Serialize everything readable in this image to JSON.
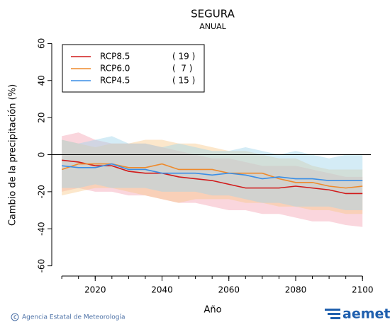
{
  "chart_data": {
    "type": "line",
    "title": "SEGURA",
    "subtitle": "ANUAL",
    "x_label": "Año",
    "y_label": "Cambio de la precipitación (%)",
    "x": [
      2010,
      2015,
      2020,
      2025,
      2030,
      2035,
      2040,
      2045,
      2050,
      2055,
      2060,
      2065,
      2070,
      2075,
      2080,
      2085,
      2090,
      2095,
      2100
    ],
    "xlim": [
      2007,
      2102.5
    ],
    "xticks": [
      2020,
      2040,
      2060,
      2080,
      2100
    ],
    "ylim": [
      -65.5,
      65.5
    ],
    "yticks": [
      -60,
      -40,
      -20,
      0,
      20,
      40,
      60
    ],
    "grid": false,
    "zero_line": true,
    "legend": "top-left",
    "series": [
      {
        "name": "RCP8.5",
        "count": "( 19 )",
        "color": "#d11a1a",
        "band_color": "#f4a3b4",
        "values": [
          -3,
          -4,
          -6,
          -6,
          -9,
          -10,
          -10,
          -12,
          -13,
          -14,
          -16,
          -18,
          -18,
          -18,
          -17,
          -18,
          -19,
          -21,
          -21
        ],
        "upper": [
          10,
          12,
          8,
          6,
          6,
          6,
          4,
          2,
          0,
          -2,
          -2,
          -4,
          -6,
          -6,
          -6,
          -8,
          -10,
          -12,
          -12
        ],
        "lower": [
          -20,
          -18,
          -20,
          -20,
          -22,
          -22,
          -24,
          -26,
          -26,
          -28,
          -30,
          -30,
          -32,
          -32,
          -34,
          -36,
          -36,
          -38,
          -39
        ]
      },
      {
        "name": "RCP6.0",
        "count": "(  7 )",
        "color": "#ee8a2c",
        "band_color": "#f8c98c",
        "values": [
          -8,
          -5,
          -5,
          -5,
          -7,
          -7,
          -5,
          -8,
          -8,
          -8,
          -10,
          -10,
          -10,
          -13,
          -15,
          -15,
          -17,
          -18,
          -17
        ],
        "upper": [
          8,
          6,
          4,
          6,
          6,
          8,
          8,
          6,
          6,
          4,
          2,
          2,
          0,
          -2,
          -2,
          -6,
          -8,
          -8,
          -8
        ],
        "lower": [
          -22,
          -20,
          -18,
          -18,
          -20,
          -22,
          -24,
          -26,
          -24,
          -24,
          -24,
          -26,
          -26,
          -28,
          -28,
          -30,
          -30,
          -32,
          -32
        ]
      },
      {
        "name": "RCP4.5",
        "count": "( 15 )",
        "color": "#3a8ee6",
        "band_color": "#9fd4ec",
        "values": [
          -6,
          -7,
          -7,
          -5,
          -8,
          -8,
          -10,
          -10,
          -10,
          -11,
          -10,
          -11,
          -13,
          -12,
          -13,
          -13,
          -14,
          -14,
          -14
        ],
        "upper": [
          8,
          6,
          8,
          10,
          6,
          6,
          4,
          6,
          4,
          2,
          2,
          4,
          2,
          0,
          2,
          0,
          -2,
          0,
          0
        ],
        "lower": [
          -18,
          -18,
          -16,
          -18,
          -18,
          -18,
          -20,
          -20,
          -20,
          -22,
          -22,
          -24,
          -26,
          -26,
          -28,
          -28,
          -28,
          -30,
          -30
        ]
      }
    ]
  },
  "footer": {
    "agency": "Agencia Estatal de Meteorología",
    "logo": "aemet"
  }
}
